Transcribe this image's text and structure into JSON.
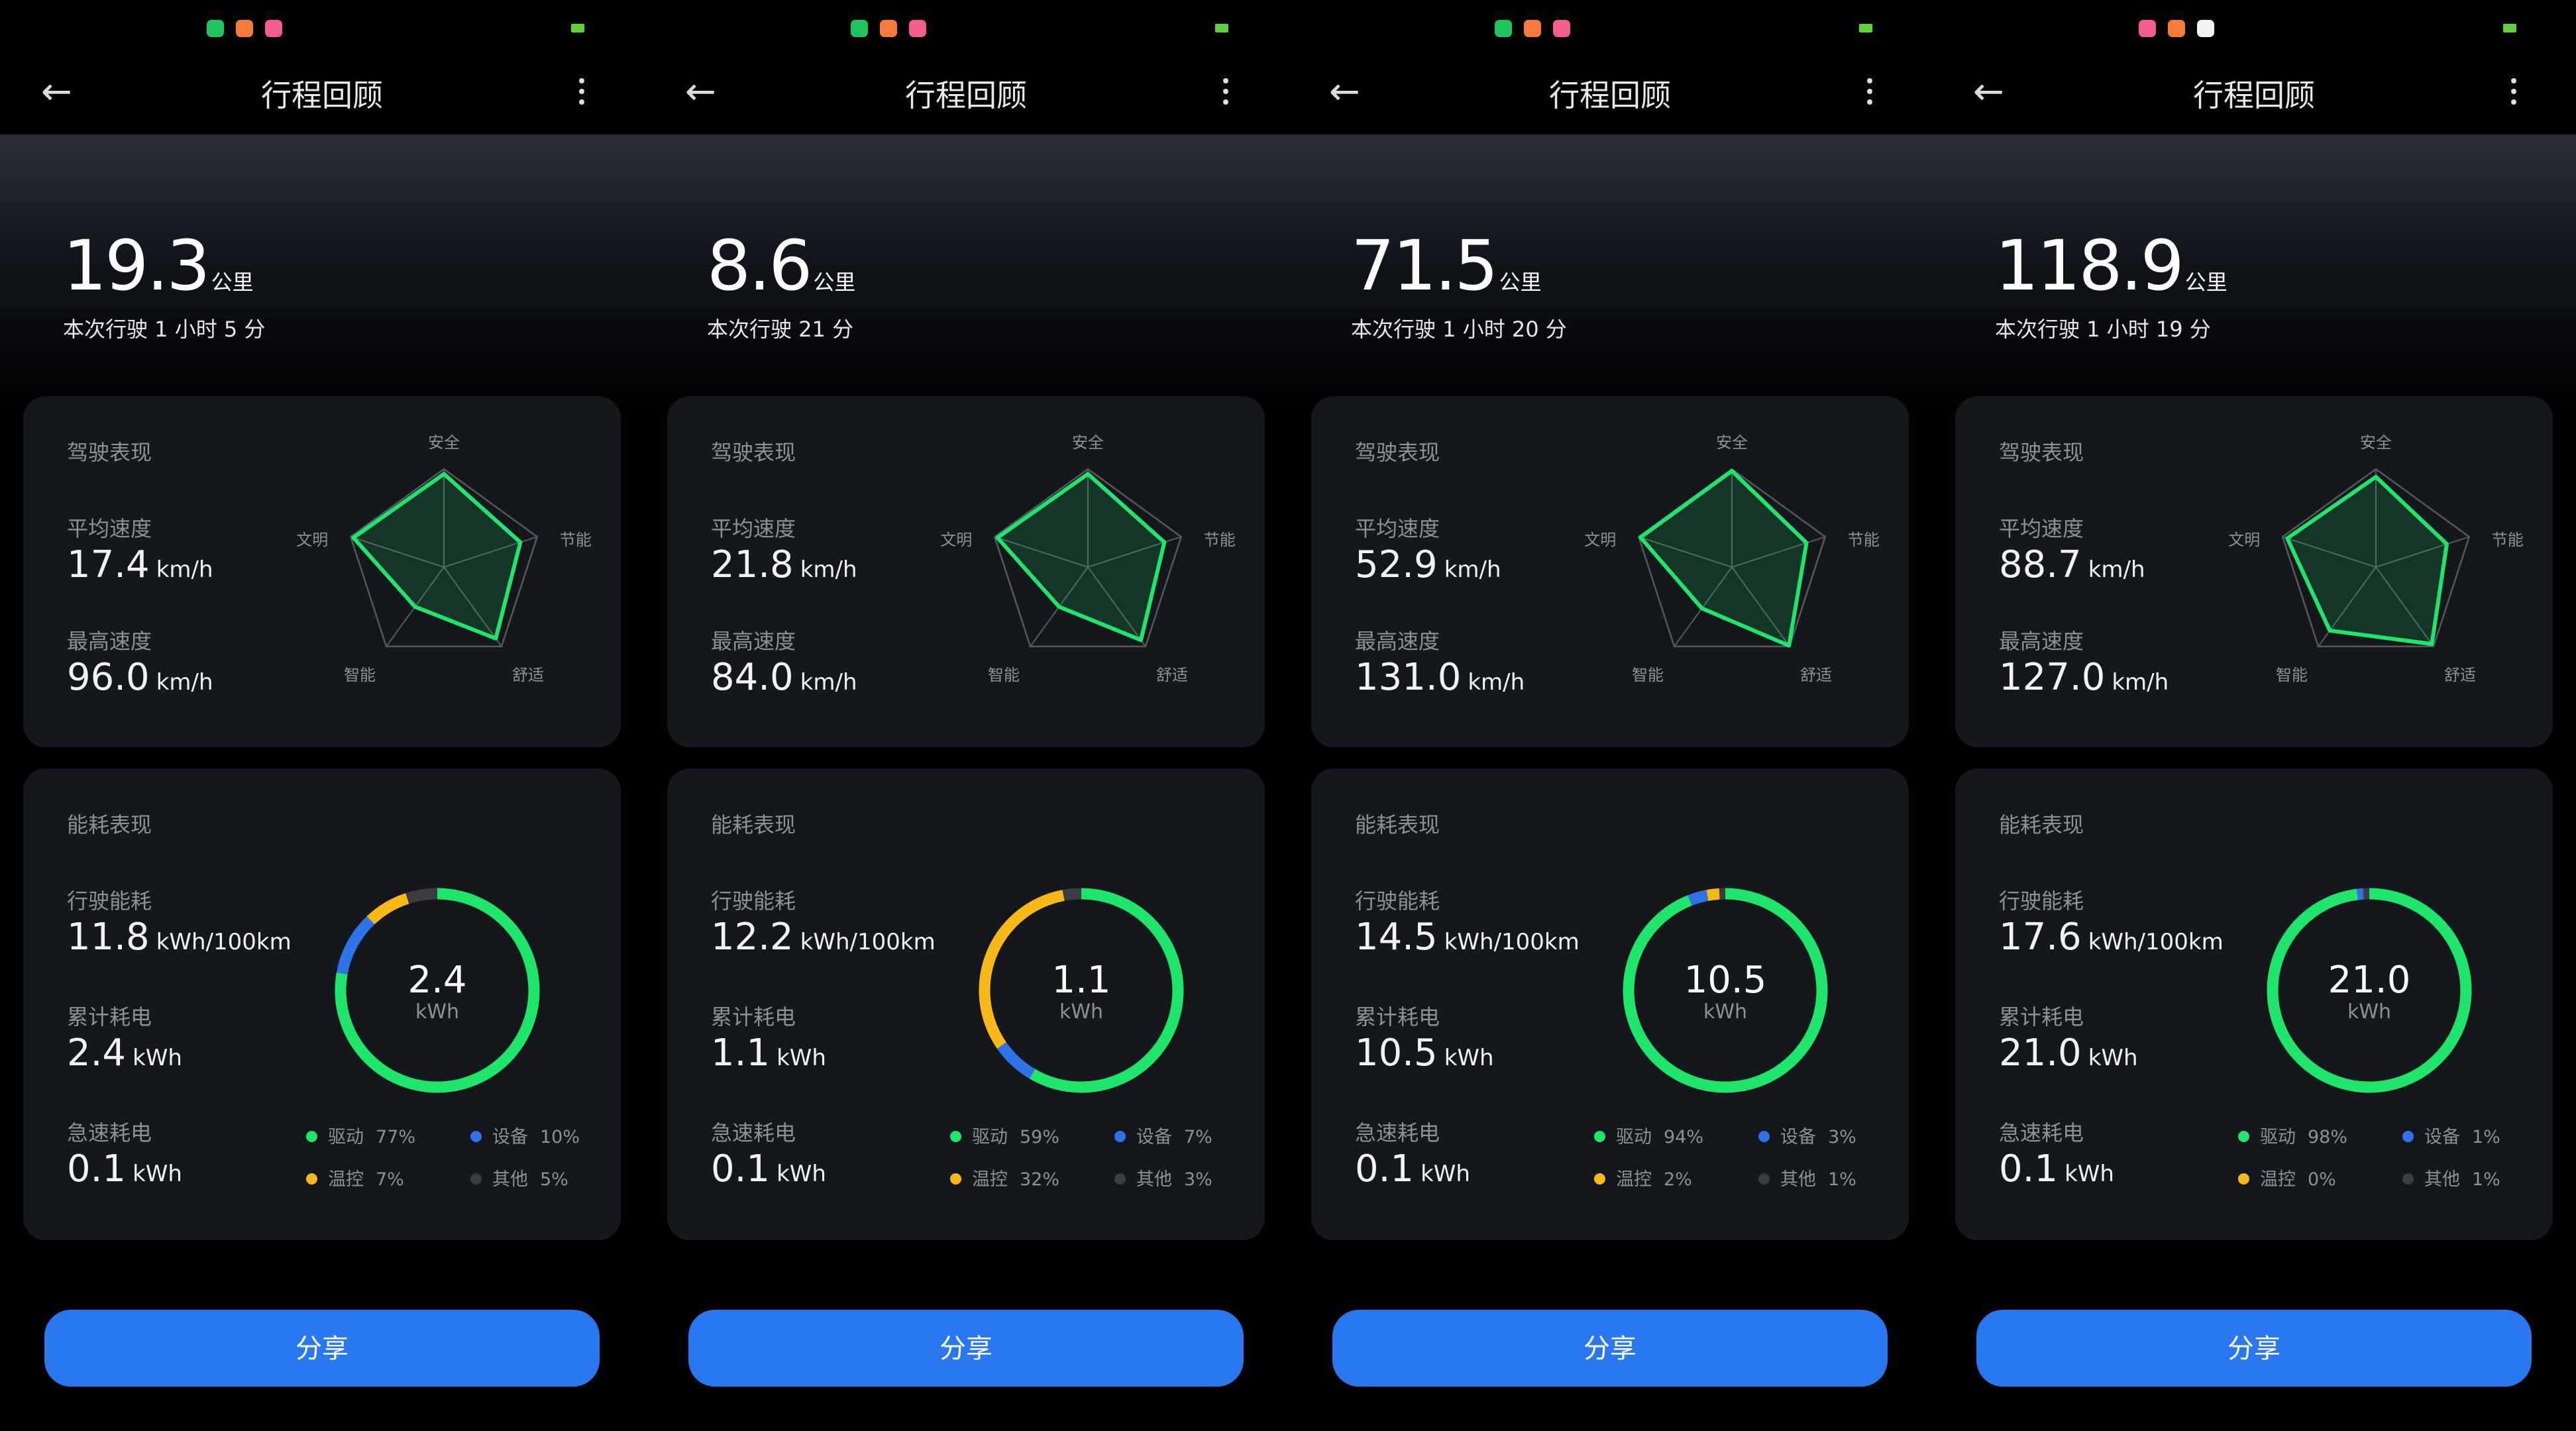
{
  "colors": {
    "accent": "#2a78f0",
    "radar": "#1ee66b",
    "drive": "#1ee66b",
    "device": "#2f73e8",
    "climate": "#f8b816",
    "other": "#3a3c40"
  },
  "radar_axes": [
    "安全",
    "节能",
    "舒适",
    "智能",
    "文明"
  ],
  "panels": [
    {
      "status_icons": [
        "wechat-icon",
        "mi-store-icon",
        "bilibili-icon"
      ],
      "title": "行程回顾",
      "distance": "19.3",
      "distance_unit": "公里",
      "duration": "本次行驶 1 小时 5 分",
      "driving": {
        "title": "驾驶表现",
        "avg_label": "平均速度",
        "avg": "17.4",
        "max_label": "最高速度",
        "max": "96.0",
        "unit": "km/h",
        "scores": [
          0.95,
          0.82,
          0.9,
          0.5,
          0.97
        ]
      },
      "energy": {
        "title": "能耗表现",
        "rate_label": "行驶能耗",
        "rate": "11.8",
        "rate_unit": "kWh/100km",
        "total_label": "累计耗电",
        "total": "2.4",
        "kwh": "kWh",
        "rapid_label": "急速耗电",
        "rapid": "0.1",
        "center": "2.4",
        "breakdown": [
          {
            "key": "drive",
            "label": "驱动",
            "pct": 77
          },
          {
            "key": "device",
            "label": "设备",
            "pct": 10
          },
          {
            "key": "climate",
            "label": "温控",
            "pct": 7
          },
          {
            "key": "other",
            "label": "其他",
            "pct": 5
          }
        ]
      },
      "share": "分享"
    },
    {
      "status_icons": [
        "wechat-icon",
        "mi-store-icon",
        "bilibili-icon"
      ],
      "title": "行程回顾",
      "distance": "8.6",
      "distance_unit": "公里",
      "duration": "本次行驶 21 分",
      "driving": {
        "title": "驾驶表现",
        "avg_label": "平均速度",
        "avg": "21.8",
        "max_label": "最高速度",
        "max": "84.0",
        "unit": "km/h",
        "scores": [
          0.95,
          0.82,
          0.92,
          0.5,
          0.97
        ]
      },
      "energy": {
        "title": "能耗表现",
        "rate_label": "行驶能耗",
        "rate": "12.2",
        "rate_unit": "kWh/100km",
        "total_label": "累计耗电",
        "total": "1.1",
        "kwh": "kWh",
        "rapid_label": "急速耗电",
        "rapid": "0.1",
        "center": "1.1",
        "breakdown": [
          {
            "key": "drive",
            "label": "驱动",
            "pct": 59
          },
          {
            "key": "device",
            "label": "设备",
            "pct": 7
          },
          {
            "key": "climate",
            "label": "温控",
            "pct": 32
          },
          {
            "key": "other",
            "label": "其他",
            "pct": 3
          }
        ]
      },
      "share": "分享"
    },
    {
      "status_icons": [
        "wechat-icon",
        "mi-store-icon",
        "bilibili-icon"
      ],
      "title": "行程回顾",
      "distance": "71.5",
      "distance_unit": "公里",
      "duration": "本次行驶 1 小时 20 分",
      "driving": {
        "title": "驾驶表现",
        "avg_label": "平均速度",
        "avg": "52.9",
        "max_label": "最高速度",
        "max": "131.0",
        "unit": "km/h",
        "scores": [
          0.98,
          0.8,
          0.99,
          0.52,
          0.98
        ]
      },
      "energy": {
        "title": "能耗表现",
        "rate_label": "行驶能耗",
        "rate": "14.5",
        "rate_unit": "kWh/100km",
        "total_label": "累计耗电",
        "total": "10.5",
        "kwh": "kWh",
        "rapid_label": "急速耗电",
        "rapid": "0.1",
        "center": "10.5",
        "breakdown": [
          {
            "key": "drive",
            "label": "驱动",
            "pct": 94
          },
          {
            "key": "device",
            "label": "设备",
            "pct": 3
          },
          {
            "key": "climate",
            "label": "温控",
            "pct": 2
          },
          {
            "key": "other",
            "label": "其他",
            "pct": 1
          }
        ]
      },
      "share": "分享"
    },
    {
      "status_icons": [
        "bilibili-icon",
        "mi-store-icon",
        "tiktok-icon"
      ],
      "title": "行程回顾",
      "distance": "118.9",
      "distance_unit": "公里",
      "duration": "本次行驶 1 小时 19 分",
      "driving": {
        "title": "驾驶表现",
        "avg_label": "平均速度",
        "avg": "88.7",
        "max_label": "最高速度",
        "max": "127.0",
        "unit": "km/h",
        "scores": [
          0.92,
          0.76,
          0.97,
          0.8,
          0.95
        ]
      },
      "energy": {
        "title": "能耗表现",
        "rate_label": "行驶能耗",
        "rate": "17.6",
        "rate_unit": "kWh/100km",
        "total_label": "累计耗电",
        "total": "21.0",
        "kwh": "kWh",
        "rapid_label": "急速耗电",
        "rapid": "0.1",
        "center": "21.0",
        "breakdown": [
          {
            "key": "drive",
            "label": "驱动",
            "pct": 98
          },
          {
            "key": "device",
            "label": "设备",
            "pct": 1
          },
          {
            "key": "climate",
            "label": "温控",
            "pct": 0
          },
          {
            "key": "other",
            "label": "其他",
            "pct": 1
          }
        ]
      },
      "share": "分享"
    }
  ]
}
